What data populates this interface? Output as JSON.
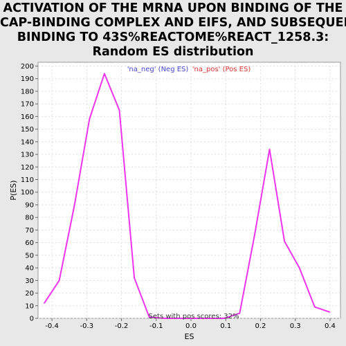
{
  "chart_data": {
    "type": "line",
    "title_lines": [
      "ACTIVATION OF THE MRNA UPON BINDING OF THE",
      "CAP-BINDING COMPLEX AND EIFS, AND SUBSEQUENT",
      "BINDING TO 43S%REACTOME%REACT_1258.3:",
      "Random ES distribution"
    ],
    "xlabel": "ES",
    "ylabel": "P(ES)",
    "xlim": [
      -0.44,
      0.43
    ],
    "ylim": [
      0,
      203
    ],
    "x_ticks": [
      -0.4,
      -0.3,
      -0.2,
      -0.1,
      0.0,
      0.1,
      0.2,
      0.3,
      0.4
    ],
    "x_tick_labels": [
      "-0.4",
      "-0.3",
      "-0.2",
      "-0.1",
      "0.0",
      "0.1",
      "0.2",
      "0.3",
      "0.4"
    ],
    "y_ticks": [
      0,
      10,
      20,
      30,
      40,
      50,
      60,
      70,
      80,
      90,
      100,
      110,
      120,
      130,
      140,
      150,
      160,
      170,
      180,
      190,
      200
    ],
    "y_tick_labels": [
      "0",
      "10",
      "20",
      "30",
      "40",
      "50",
      "60",
      "70",
      "80",
      "90",
      "100",
      "110",
      "120",
      "130",
      "140",
      "150",
      "160",
      "170",
      "180",
      "190",
      "200"
    ],
    "grid": true,
    "legend": {
      "placement": "top-center",
      "entries": [
        {
          "label": "'na_neg' (Neg ES)",
          "color": "#4444cc"
        },
        {
          "label": "'na_pos' (Pos ES)",
          "color": "#dd3333"
        }
      ]
    },
    "series": [
      {
        "color": "#ee33ee",
        "x": [
          -0.422,
          -0.379,
          -0.335,
          -0.292,
          -0.249,
          -0.206,
          -0.163,
          -0.12,
          -0.076,
          -0.033,
          0.01,
          0.053,
          0.097,
          0.14,
          0.183,
          0.226,
          0.269,
          0.312,
          0.356,
          0.399
        ],
        "y": [
          12,
          30,
          90,
          158,
          194,
          165,
          32,
          1,
          0,
          0,
          0,
          0,
          0,
          4,
          66,
          134,
          61,
          40,
          9,
          5
        ]
      }
    ],
    "annotation": "Sets with pos scores: 32%"
  }
}
